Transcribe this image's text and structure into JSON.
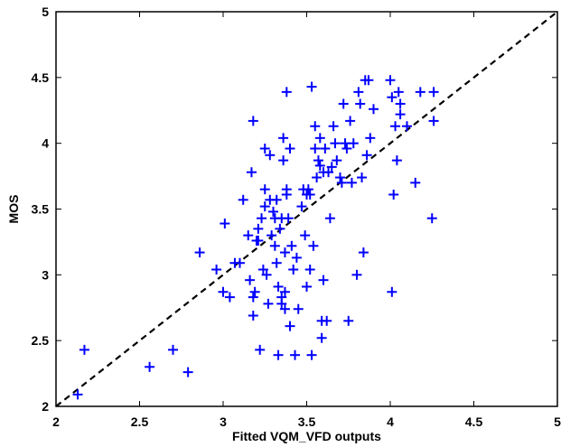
{
  "chart_data": {
    "type": "scatter",
    "title": "",
    "xlabel": "Fitted VQM_VFD outputs",
    "ylabel": "MOS",
    "xlim": [
      2,
      5
    ],
    "ylim": [
      2,
      5
    ],
    "xticks": [
      "2",
      "2.5",
      "3",
      "3.5",
      "4",
      "4.5",
      "5"
    ],
    "yticks": [
      "2",
      "2.5",
      "3",
      "3.5",
      "4",
      "4.5",
      "5"
    ],
    "grid": false,
    "marker": "plus",
    "marker_color": "#0000ff",
    "reference_line": {
      "style": "dashed",
      "color": "#000000",
      "from": [
        2,
        2
      ],
      "to": [
        5,
        5
      ]
    },
    "points": [
      [
        2.13,
        2.09
      ],
      [
        2.17,
        2.43
      ],
      [
        2.56,
        2.3
      ],
      [
        2.7,
        2.43
      ],
      [
        2.79,
        2.26
      ],
      [
        2.86,
        3.17
      ],
      [
        2.96,
        3.04
      ],
      [
        3.0,
        2.87
      ],
      [
        3.01,
        3.39
      ],
      [
        3.04,
        2.83
      ],
      [
        3.07,
        3.09
      ],
      [
        3.1,
        3.09
      ],
      [
        3.12,
        3.57
      ],
      [
        3.15,
        3.3
      ],
      [
        3.16,
        2.96
      ],
      [
        3.17,
        3.78
      ],
      [
        3.18,
        4.17
      ],
      [
        3.18,
        2.83
      ],
      [
        3.18,
        2.69
      ],
      [
        3.19,
        2.87
      ],
      [
        3.2,
        3.26
      ],
      [
        3.21,
        3.35
      ],
      [
        3.21,
        3.26
      ],
      [
        3.22,
        2.43
      ],
      [
        3.23,
        3.43
      ],
      [
        3.24,
        3.04
      ],
      [
        3.25,
        3.96
      ],
      [
        3.25,
        3.52
      ],
      [
        3.25,
        3.65
      ],
      [
        3.26,
        3.0
      ],
      [
        3.27,
        2.78
      ],
      [
        3.28,
        3.91
      ],
      [
        3.28,
        3.57
      ],
      [
        3.29,
        3.3
      ],
      [
        3.3,
        3.48
      ],
      [
        3.31,
        3.43
      ],
      [
        3.31,
        3.22
      ],
      [
        3.32,
        3.57
      ],
      [
        3.32,
        3.09
      ],
      [
        3.33,
        2.91
      ],
      [
        3.33,
        2.39
      ],
      [
        3.34,
        3.35
      ],
      [
        3.35,
        3.43
      ],
      [
        3.35,
        2.83
      ],
      [
        3.35,
        2.78
      ],
      [
        3.36,
        4.04
      ],
      [
        3.36,
        3.87
      ],
      [
        3.37,
        2.87
      ],
      [
        3.37,
        3.17
      ],
      [
        3.37,
        2.74
      ],
      [
        3.38,
        3.65
      ],
      [
        3.38,
        3.61
      ],
      [
        3.38,
        4.39
      ],
      [
        3.39,
        3.43
      ],
      [
        3.4,
        3.96
      ],
      [
        3.4,
        2.61
      ],
      [
        3.41,
        3.22
      ],
      [
        3.42,
        3.04
      ],
      [
        3.43,
        2.39
      ],
      [
        3.44,
        3.13
      ],
      [
        3.45,
        2.74
      ],
      [
        3.47,
        3.52
      ],
      [
        3.48,
        3.65
      ],
      [
        3.49,
        3.3
      ],
      [
        3.5,
        2.91
      ],
      [
        3.5,
        3.61
      ],
      [
        3.51,
        3.65
      ],
      [
        3.52,
        3.04
      ],
      [
        3.52,
        3.61
      ],
      [
        3.53,
        2.39
      ],
      [
        3.53,
        4.43
      ],
      [
        3.54,
        3.22
      ],
      [
        3.55,
        3.96
      ],
      [
        3.55,
        4.13
      ],
      [
        3.56,
        3.74
      ],
      [
        3.57,
        3.87
      ],
      [
        3.58,
        3.83
      ],
      [
        3.58,
        4.04
      ],
      [
        3.59,
        2.65
      ],
      [
        3.59,
        2.52
      ],
      [
        3.6,
        3.78
      ],
      [
        3.6,
        2.96
      ],
      [
        3.61,
        3.96
      ],
      [
        3.62,
        2.65
      ],
      [
        3.63,
        3.78
      ],
      [
        3.64,
        3.43
      ],
      [
        3.65,
        3.82
      ],
      [
        3.66,
        4.13
      ],
      [
        3.67,
        4.0
      ],
      [
        3.68,
        3.87
      ],
      [
        3.7,
        3.74
      ],
      [
        3.71,
        3.7
      ],
      [
        3.72,
        4.3
      ],
      [
        3.73,
        4.0
      ],
      [
        3.74,
        3.96
      ],
      [
        3.75,
        2.65
      ],
      [
        3.76,
        4.17
      ],
      [
        3.77,
        3.7
      ],
      [
        3.78,
        4.0
      ],
      [
        3.8,
        3.0
      ],
      [
        3.81,
        4.39
      ],
      [
        3.82,
        4.3
      ],
      [
        3.83,
        3.74
      ],
      [
        3.84,
        3.17
      ],
      [
        3.85,
        4.48
      ],
      [
        3.86,
        3.91
      ],
      [
        3.87,
        4.48
      ],
      [
        3.88,
        4.04
      ],
      [
        3.9,
        4.26
      ],
      [
        4.0,
        4.48
      ],
      [
        4.01,
        4.35
      ],
      [
        4.01,
        2.87
      ],
      [
        4.02,
        3.61
      ],
      [
        4.03,
        4.13
      ],
      [
        4.04,
        3.87
      ],
      [
        4.05,
        4.39
      ],
      [
        4.06,
        4.3
      ],
      [
        4.06,
        4.22
      ],
      [
        4.1,
        4.13
      ],
      [
        4.15,
        3.7
      ],
      [
        4.18,
        4.39
      ],
      [
        4.25,
        3.43
      ],
      [
        4.26,
        4.39
      ],
      [
        4.26,
        4.17
      ]
    ]
  }
}
